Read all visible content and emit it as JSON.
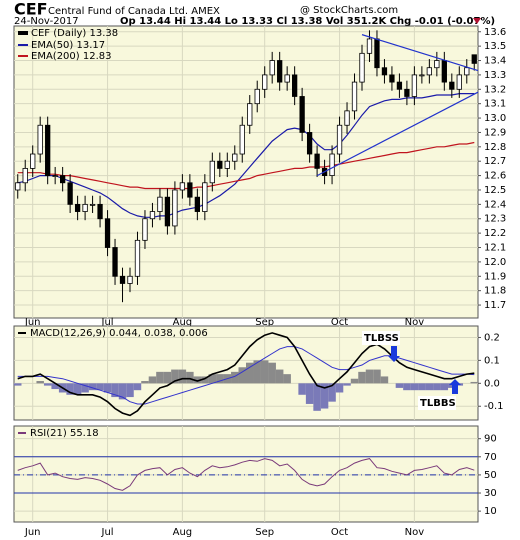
{
  "chart_data": [
    {
      "type": "candlestick",
      "title": "CEF",
      "subtitle": "Central Fund of Canada Ltd. AMEX",
      "date": "24-Nov-2017",
      "quote": "Op 13.44 Hi 13.44 Lo 13.33 Cl 13.38 Vol 351.2K Chg -0.01 (-0.07%)",
      "source": "@ StockCharts.com",
      "categories": [
        null,
        null,
        "Jun",
        null,
        null,
        null,
        null,
        null,
        null,
        null,
        null,
        null,
        "Jul",
        null,
        null,
        null,
        null,
        null,
        null,
        null,
        null,
        null,
        "Aug",
        null,
        null,
        null,
        null,
        null,
        null,
        null,
        null,
        null,
        null,
        "Sep",
        null,
        null,
        null,
        null,
        null,
        null,
        null,
        null,
        null,
        "Oct",
        null,
        null,
        null,
        null,
        null,
        null,
        null,
        null,
        null,
        "Nov",
        null,
        null,
        null,
        null,
        null,
        null,
        null,
        null
      ],
      "name": "CEF (Daily) 13.38",
      "open": [
        12.5,
        12.55,
        12.65,
        12.75,
        12.95,
        12.6,
        12.6,
        12.55,
        12.4,
        12.35,
        12.4,
        12.4,
        12.3,
        12.1,
        11.9,
        11.85,
        11.9,
        12.15,
        12.3,
        12.35,
        12.45,
        12.25,
        12.5,
        12.55,
        12.45,
        12.35,
        12.55,
        12.7,
        12.65,
        12.7,
        12.75,
        12.95,
        13.1,
        13.2,
        13.3,
        13.4,
        13.25,
        13.3,
        13.15,
        12.9,
        12.75,
        12.65,
        12.6,
        12.75,
        12.95,
        13.05,
        13.25,
        13.45,
        13.55,
        13.35,
        13.3,
        13.25,
        13.2,
        13.15,
        13.3,
        13.3,
        13.35,
        13.4,
        13.25,
        13.2,
        13.3,
        13.44
      ],
      "high": [
        12.61,
        12.71,
        12.81,
        13.01,
        13.01,
        12.66,
        12.66,
        12.61,
        12.46,
        12.46,
        12.46,
        12.46,
        12.36,
        12.16,
        11.96,
        11.96,
        12.21,
        12.36,
        12.41,
        12.51,
        12.51,
        12.56,
        12.61,
        12.61,
        12.51,
        12.61,
        12.76,
        12.76,
        12.76,
        12.81,
        13.01,
        13.16,
        13.26,
        13.36,
        13.46,
        13.46,
        13.36,
        13.36,
        13.21,
        12.96,
        12.81,
        12.71,
        12.81,
        13.01,
        13.11,
        13.31,
        13.51,
        13.61,
        13.61,
        13.41,
        13.36,
        13.31,
        13.26,
        13.36,
        13.36,
        13.41,
        13.46,
        13.46,
        13.31,
        13.36,
        13.41,
        13.44
      ],
      "low": [
        12.44,
        12.49,
        12.59,
        12.69,
        12.54,
        12.54,
        12.49,
        12.34,
        12.29,
        12.29,
        12.34,
        12.24,
        12.04,
        11.84,
        11.72,
        11.79,
        11.84,
        12.09,
        12.24,
        12.29,
        12.19,
        12.19,
        12.44,
        12.39,
        12.29,
        12.29,
        12.49,
        12.59,
        12.59,
        12.64,
        12.69,
        12.89,
        13.04,
        13.14,
        13.24,
        13.19,
        13.19,
        13.09,
        12.84,
        12.69,
        12.59,
        12.54,
        12.54,
        12.69,
        12.89,
        12.99,
        13.19,
        13.39,
        13.29,
        13.24,
        13.19,
        13.14,
        13.09,
        13.09,
        13.24,
        13.24,
        13.29,
        13.19,
        13.14,
        13.14,
        13.24,
        13.33
      ],
      "close": [
        12.55,
        12.65,
        12.75,
        12.95,
        12.6,
        12.6,
        12.55,
        12.4,
        12.35,
        12.4,
        12.4,
        12.3,
        12.1,
        11.9,
        11.85,
        11.9,
        12.15,
        12.3,
        12.35,
        12.45,
        12.25,
        12.5,
        12.55,
        12.45,
        12.35,
        12.55,
        12.7,
        12.65,
        12.7,
        12.75,
        12.95,
        13.1,
        13.2,
        13.3,
        13.4,
        13.25,
        13.3,
        13.15,
        12.9,
        12.75,
        12.65,
        12.6,
        12.75,
        12.95,
        13.05,
        13.25,
        13.45,
        13.55,
        13.35,
        13.3,
        13.25,
        13.2,
        13.15,
        13.3,
        13.3,
        13.35,
        13.4,
        13.25,
        13.2,
        13.3,
        13.35,
        13.38
      ],
      "series": [
        {
          "name": "EMA(50) 13.17",
          "color": "#1a1aa8",
          "values": [
            12.55,
            12.56,
            12.58,
            12.6,
            12.6,
            12.6,
            12.58,
            12.56,
            12.54,
            12.52,
            12.5,
            12.48,
            12.45,
            12.41,
            12.37,
            12.34,
            12.32,
            12.31,
            12.31,
            12.32,
            12.32,
            12.34,
            12.36,
            12.37,
            12.38,
            12.4,
            12.43,
            12.46,
            12.5,
            12.54,
            12.6,
            12.66,
            12.72,
            12.78,
            12.84,
            12.88,
            12.92,
            12.93,
            12.92,
            12.88,
            12.82,
            12.78,
            12.78,
            12.82,
            12.88,
            12.95,
            13.02,
            13.08,
            13.1,
            13.12,
            13.13,
            13.13,
            13.14,
            13.14,
            13.14,
            13.15,
            13.16,
            13.16,
            13.16,
            13.17,
            13.17,
            13.17
          ]
        },
        {
          "name": "EMA(200) 12.83",
          "color": "#c0141e",
          "values": [
            12.62,
            12.62,
            12.62,
            12.62,
            12.61,
            12.61,
            12.6,
            12.6,
            12.59,
            12.58,
            12.57,
            12.56,
            12.55,
            12.54,
            12.53,
            12.52,
            12.52,
            12.51,
            12.51,
            12.51,
            12.51,
            12.51,
            12.51,
            12.51,
            12.52,
            12.52,
            12.53,
            12.54,
            12.55,
            12.56,
            12.57,
            12.58,
            12.6,
            12.61,
            12.62,
            12.63,
            12.64,
            12.65,
            12.65,
            12.66,
            12.66,
            12.66,
            12.67,
            12.68,
            12.69,
            12.7,
            12.71,
            12.72,
            12.73,
            12.74,
            12.75,
            12.76,
            12.76,
            12.77,
            12.78,
            12.79,
            12.8,
            12.8,
            12.81,
            12.82,
            12.82,
            12.83
          ]
        }
      ],
      "trendlines": [
        {
          "x": [
            40,
            61.5
          ],
          "y": [
            12.6,
            13.18
          ]
        },
        {
          "x": [
            46,
            61.5
          ],
          "y": [
            13.58,
            13.33
          ]
        }
      ],
      "trendline_color": "#2233cc",
      "ylim": [
        11.61,
        13.64
      ],
      "yticks": [
        11.7,
        11.8,
        11.9,
        {
          "value": 12,
          "label": "12.0"
        },
        12.1,
        12.2,
        12.3,
        12.4,
        12.5,
        12.6,
        12.7,
        12.8,
        12.9,
        {
          "value": 13,
          "label": "13.0"
        },
        13.1,
        13.2,
        13.3,
        13.4,
        13.5,
        13.6
      ],
      "grid": true
    },
    {
      "type": "macd",
      "label": "MACD(12,26,9) 0.044, 0.038, 0.006",
      "series": [
        {
          "color": "#000000",
          "values": [
            0.02,
            0.03,
            0.03,
            0.04,
            0.02,
            0.0,
            -0.02,
            -0.04,
            -0.05,
            -0.05,
            -0.05,
            -0.06,
            -0.08,
            -0.11,
            -0.13,
            -0.14,
            -0.12,
            -0.08,
            -0.05,
            -0.02,
            -0.01,
            0.01,
            0.02,
            0.02,
            0.01,
            0.02,
            0.04,
            0.05,
            0.06,
            0.08,
            0.12,
            0.16,
            0.19,
            0.21,
            0.22,
            0.21,
            0.2,
            0.16,
            0.1,
            0.04,
            -0.01,
            -0.02,
            -0.01,
            0.02,
            0.05,
            0.09,
            0.13,
            0.16,
            0.17,
            0.15,
            0.12,
            0.09,
            0.07,
            0.06,
            0.05,
            0.04,
            0.03,
            0.02,
            0.02,
            0.03,
            0.04,
            0.044
          ]
        },
        {
          "color": "#3333cc",
          "values": [
            0.03,
            0.03,
            0.03,
            0.03,
            0.03,
            0.025,
            0.02,
            0.01,
            0.0,
            -0.01,
            -0.02,
            -0.03,
            -0.04,
            -0.05,
            -0.06,
            -0.08,
            -0.09,
            -0.09,
            -0.08,
            -0.07,
            -0.06,
            -0.05,
            -0.04,
            -0.03,
            -0.02,
            -0.01,
            0.0,
            0.01,
            0.02,
            0.03,
            0.05,
            0.07,
            0.09,
            0.11,
            0.13,
            0.15,
            0.16,
            0.16,
            0.15,
            0.13,
            0.11,
            0.09,
            0.07,
            0.06,
            0.06,
            0.07,
            0.08,
            0.1,
            0.11,
            0.12,
            0.12,
            0.11,
            0.1,
            0.09,
            0.08,
            0.07,
            0.06,
            0.05,
            0.04,
            0.04,
            0.04,
            0.038
          ]
        }
      ],
      "histogram": {
        "positive_color": "#8a8a8a",
        "negative_color": "#7a7ab8",
        "values": [
          -0.01,
          0.0,
          0.0,
          0.01,
          -0.01,
          -0.025,
          -0.04,
          -0.05,
          -0.05,
          -0.04,
          -0.03,
          -0.03,
          -0.04,
          -0.06,
          -0.07,
          -0.06,
          -0.03,
          0.01,
          0.03,
          0.05,
          0.05,
          0.06,
          0.06,
          0.05,
          0.03,
          0.03,
          0.04,
          0.04,
          0.04,
          0.05,
          0.07,
          0.09,
          0.1,
          0.1,
          0.09,
          0.06,
          0.04,
          0.0,
          -0.05,
          -0.09,
          -0.12,
          -0.11,
          -0.08,
          -0.04,
          -0.01,
          0.02,
          0.05,
          0.06,
          0.06,
          0.03,
          0.0,
          -0.02,
          -0.03,
          -0.03,
          -0.03,
          -0.03,
          -0.03,
          -0.03,
          -0.02,
          -0.01,
          0.0,
          0.006
        ]
      },
      "annotations": [
        {
          "text": "TLBSS"
        },
        {
          "text": "TLBBS"
        }
      ],
      "ylim": [
        -0.16,
        0.25
      ],
      "yticks": [
        -0.1,
        {
          "value": 0,
          "label": "0.0"
        },
        0.1,
        0.2
      ],
      "grid": true
    },
    {
      "type": "rsi",
      "label": "RSI(21) 55.18",
      "color": "#7a3a7a",
      "values": [
        55,
        58,
        60,
        63,
        50,
        52,
        48,
        46,
        45,
        47,
        46,
        44,
        40,
        35,
        33,
        38,
        50,
        55,
        57,
        58,
        50,
        56,
        58,
        52,
        48,
        55,
        60,
        58,
        59,
        61,
        64,
        66,
        65,
        68,
        66,
        60,
        62,
        55,
        45,
        40,
        38,
        40,
        48,
        55,
        58,
        63,
        66,
        68,
        58,
        57,
        54,
        52,
        50,
        55,
        56,
        58,
        60,
        52,
        50,
        56,
        58,
        55.18
      ],
      "levels": [
        30,
        50,
        70
      ],
      "level_color": "#2233aa",
      "ylim": [
        -2,
        104
      ],
      "yticks": [
        10,
        30,
        50,
        70,
        90
      ],
      "grid": true
    }
  ]
}
